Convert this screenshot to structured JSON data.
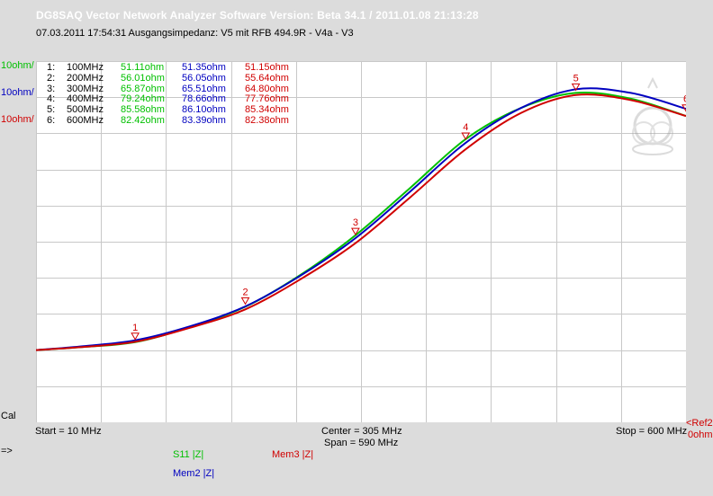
{
  "app": {
    "title": "DG8SAQ Vector Network Analyzer Software   Version:  Beta 34.1 / 2011.01.08 21:13:28",
    "subtitle": "07.03.2011     17:54:31     Ausgangsimpedanz: V5 mit RFB 494.9R - V4a - V3"
  },
  "scales": [
    {
      "label": "10ohm/",
      "color": "#00c000"
    },
    {
      "label": "10ohm/",
      "color": "#0000c0"
    },
    {
      "label": "10ohm/",
      "color": "#d00000"
    }
  ],
  "markers": [
    {
      "idx": "1:",
      "freq": "100MHz",
      "s11": "51.11ohm",
      "mem2": "51.35ohm",
      "mem3": "51.15ohm"
    },
    {
      "idx": "2:",
      "freq": "200MHz",
      "s11": "56.01ohm",
      "mem2": "56.05ohm",
      "mem3": "55.64ohm"
    },
    {
      "idx": "3:",
      "freq": "300MHz",
      "s11": "65.87ohm",
      "mem2": "65.51ohm",
      "mem3": "64.80ohm"
    },
    {
      "idx": "4:",
      "freq": "400MHz",
      "s11": "79.24ohm",
      "mem2": "78.66ohm",
      "mem3": "77.76ohm"
    },
    {
      "idx": "5:",
      "freq": "500MHz",
      "s11": "85.58ohm",
      "mem2": "86.10ohm",
      "mem3": "85.34ohm"
    },
    {
      "idx": "6:",
      "freq": "600MHz",
      "s11": "82.42ohm",
      "mem2": "83.39ohm",
      "mem3": "82.38ohm"
    }
  ],
  "chart_data": {
    "type": "line",
    "x_unit": "MHz",
    "xlim": [
      10,
      600
    ],
    "ylim": [
      40,
      90
    ],
    "grid": true,
    "series": [
      {
        "name": "S11 |Z|",
        "color": "#00c000",
        "x": [
          10,
          50,
          100,
          150,
          200,
          250,
          300,
          350,
          400,
          450,
          500,
          550,
          600
        ],
        "values": [
          50.0,
          50.4,
          51.1,
          53.2,
          56.0,
          60.4,
          65.9,
          72.5,
          79.2,
          83.5,
          85.6,
          84.8,
          82.4
        ]
      },
      {
        "name": "Mem2 |Z|",
        "color": "#0000c0",
        "x": [
          10,
          50,
          100,
          150,
          200,
          250,
          300,
          350,
          400,
          450,
          500,
          550,
          600
        ],
        "values": [
          50.0,
          50.5,
          51.35,
          53.3,
          56.05,
          60.3,
          65.5,
          72.0,
          78.7,
          83.5,
          86.1,
          85.6,
          83.4
        ]
      },
      {
        "name": "Mem3 |Z|",
        "color": "#d00000",
        "x": [
          10,
          50,
          100,
          150,
          200,
          250,
          300,
          350,
          400,
          450,
          500,
          550,
          600
        ],
        "values": [
          50.0,
          50.4,
          51.15,
          53.1,
          55.64,
          59.8,
          64.8,
          71.2,
          77.8,
          82.8,
          85.3,
          84.6,
          82.4
        ]
      }
    ],
    "marker_points": [
      {
        "label": "1",
        "x": 100,
        "y": 51.1
      },
      {
        "label": "2",
        "x": 200,
        "y": 56.0
      },
      {
        "label": "3",
        "x": 300,
        "y": 65.6
      },
      {
        "label": "4",
        "x": 400,
        "y": 78.8
      },
      {
        "label": "5",
        "x": 500,
        "y": 85.6
      },
      {
        "label": "6",
        "x": 600,
        "y": 82.7
      }
    ]
  },
  "footer": {
    "cal": "Cal",
    "start": "Start = 10 MHz",
    "center": "Center = 305 MHz",
    "span": "Span = 590 MHz",
    "stop": "Stop = 600 MHz",
    "ref_top": "<Ref2",
    "ref_bottom": "0ohm",
    "arrow": "=>"
  },
  "legend": {
    "s11": "S11   |Z|",
    "mem3": "Mem3  |Z|",
    "mem2": "Mem2  |Z|"
  }
}
